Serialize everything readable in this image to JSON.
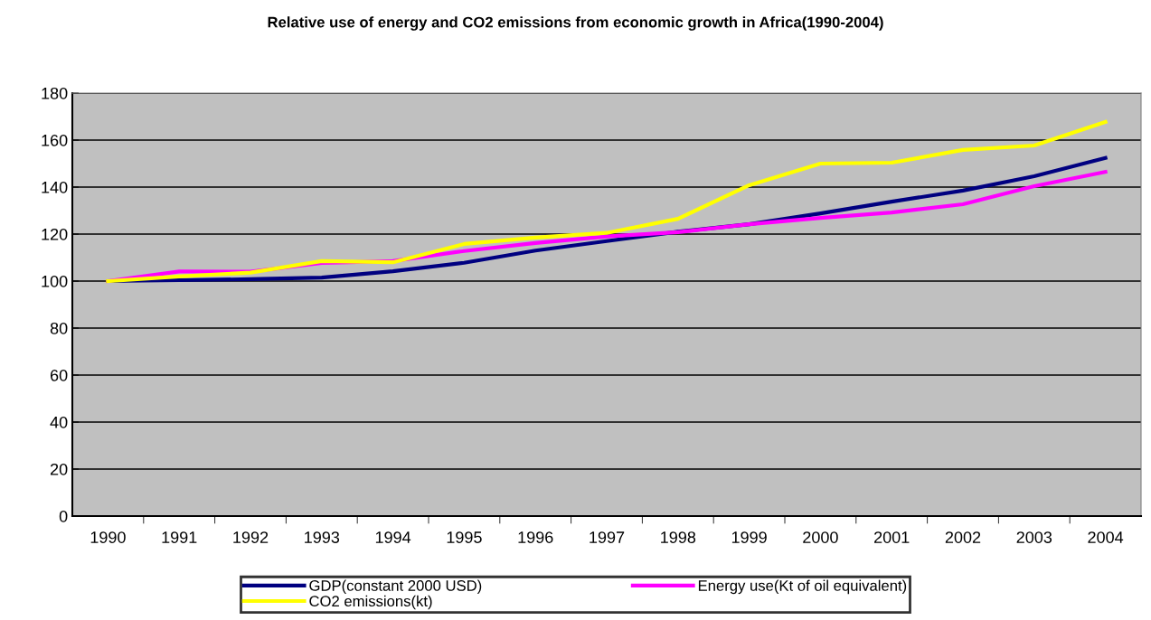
{
  "chart_data": {
    "type": "line",
    "title": "Relative use of energy and CO2 emissions from economic growth in Africa(1990-2004)",
    "categories": [
      "1990",
      "1991",
      "1992",
      "1993",
      "1994",
      "1995",
      "1996",
      "1997",
      "1998",
      "1999",
      "2000",
      "2001",
      "2002",
      "2003",
      "2004"
    ],
    "series": [
      {
        "name": "GDP(constant 2000 USD)",
        "color": "#000080",
        "values": [
          100,
          100.4,
          100.8,
          101.5,
          104.2,
          107.8,
          113,
          117,
          121,
          124.2,
          128.8,
          133.8,
          138.5,
          144.6,
          152.4
        ]
      },
      {
        "name": "Energy use(Kt of oil equivalent)",
        "color": "#ff00ff",
        "values": [
          100,
          104.1,
          104,
          107.7,
          108.5,
          112.8,
          116.2,
          119,
          120.8,
          124.2,
          126.9,
          129.2,
          132.7,
          140.4,
          146.5
        ]
      },
      {
        "name": "CO2 emissions(kt)",
        "color": "#ffff00",
        "values": [
          100,
          102,
          103.6,
          108.5,
          108,
          115.8,
          118.5,
          120.5,
          126.5,
          140.8,
          150,
          150.4,
          155.8,
          157.7,
          167.7
        ]
      }
    ],
    "ylim": [
      0,
      180
    ],
    "yticks": [
      0,
      20,
      40,
      60,
      80,
      100,
      120,
      140,
      160,
      180
    ],
    "grid": "y",
    "legend": "bottom",
    "marker": "none",
    "line_style": "solid"
  }
}
